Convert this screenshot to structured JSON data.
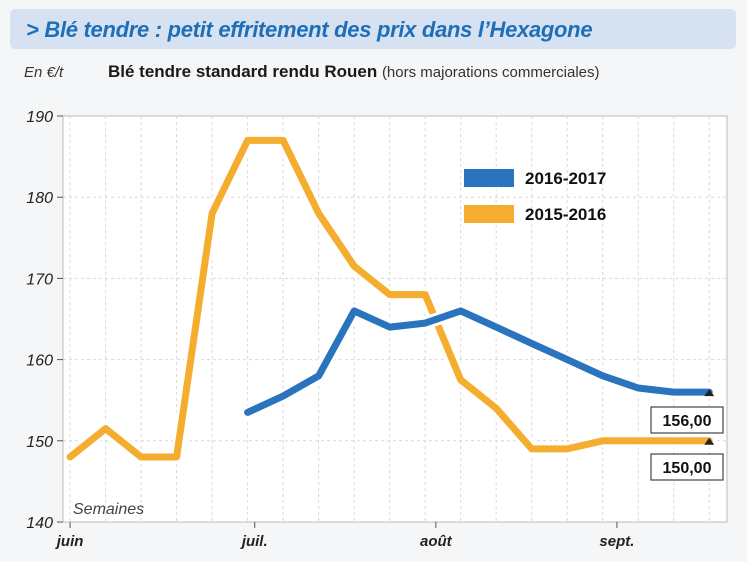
{
  "header": {
    "banner_title": "> Blé tendre : petit effritement des prix dans l’Hexagone",
    "unit": "En €/t",
    "subtitle": "Blé tendre standard rendu Rouen",
    "subtitle_note": "(hors majorations commerciales)"
  },
  "colors": {
    "banner": "#d6e2f1",
    "title": "#1f6fb8",
    "series_2016_2017": "#2a74bd",
    "series_2015_2016": "#f5ad2f"
  },
  "chart_data": {
    "type": "line",
    "title": "Blé tendre standard rendu Rouen",
    "ylabel": "En €/t",
    "xlabel": "Semaines",
    "ylim": [
      140,
      190
    ],
    "yticks": [
      140,
      150,
      160,
      170,
      180,
      190
    ],
    "x_tick_labels": [
      "juin",
      "juil.",
      "août",
      "sept."
    ],
    "x_tick_positions": [
      0,
      5.2,
      10.3,
      15.4
    ],
    "xlim": [
      -0.2,
      18.5
    ],
    "grid": true,
    "legend": "top-right",
    "annotations": [
      "Semaines"
    ],
    "series": [
      {
        "name": "2016-2017",
        "color": "#2a74bd",
        "x": [
          5,
          6,
          7,
          8,
          9,
          10,
          11,
          12,
          13,
          14,
          15,
          16,
          17,
          18
        ],
        "values": [
          153.5,
          155.5,
          158,
          166,
          164,
          164.5,
          166,
          164,
          162,
          160,
          158,
          156.5,
          156,
          156
        ]
      },
      {
        "name": "2015-2016",
        "color": "#f5ad2f",
        "x": [
          0,
          1,
          2,
          3,
          4,
          5,
          6,
          7,
          8,
          9,
          10,
          11,
          12,
          13,
          14,
          15,
          16,
          17,
          18
        ],
        "values": [
          148,
          151.5,
          148,
          148,
          178,
          187,
          187,
          178,
          171.5,
          168,
          168,
          157.5,
          154,
          149,
          149,
          150,
          150,
          150,
          150
        ]
      }
    ],
    "end_labels": [
      "156,00",
      "150,00"
    ]
  }
}
